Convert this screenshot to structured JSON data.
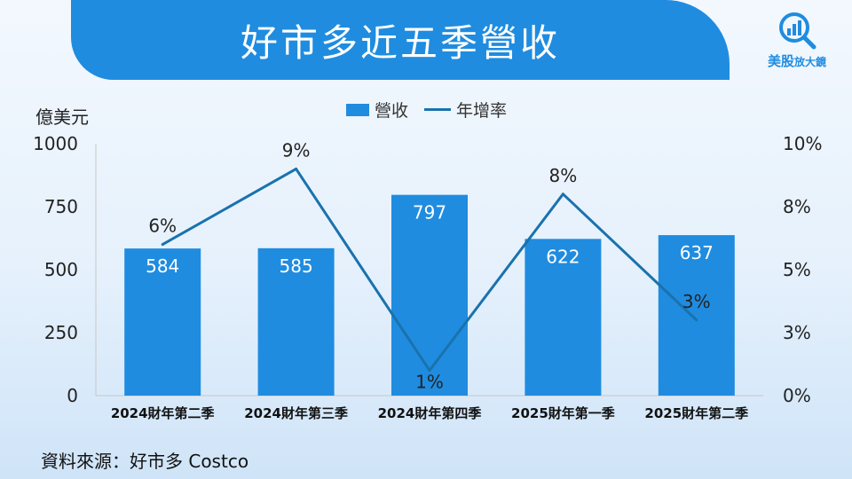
{
  "title": "好市多近五季營收",
  "logo": {
    "brand": "美股",
    "sub": "放大鏡",
    "mark": "magnifier-chart-icon",
    "color": "#1f8ce0"
  },
  "source": "資料來源：好市多 Costco",
  "chart_data": {
    "type": "bar",
    "categories": [
      "2024財年第二季",
      "2024財年第三季",
      "2024財年第四季",
      "2025財年第一季",
      "2025財年第二季"
    ],
    "series": [
      {
        "name": "營收",
        "type": "bar",
        "axis": "left",
        "values": [
          584,
          585,
          797,
          622,
          637
        ],
        "labels": [
          "584",
          "585",
          "797",
          "622",
          "637"
        ],
        "color": "#1f8ce0"
      },
      {
        "name": "年增率",
        "type": "line",
        "axis": "right",
        "values": [
          6,
          9,
          1,
          8,
          3
        ],
        "labels": [
          "6%",
          "9%",
          "1%",
          "8%",
          "3%"
        ],
        "color": "#1a72ad"
      }
    ],
    "ylabel": "億美元",
    "ylim": [
      0,
      1000
    ],
    "yticks": [
      "0",
      "250",
      "500",
      "750",
      "1000"
    ],
    "y2lim": [
      0,
      10
    ],
    "y2ticks": [
      "0%",
      "3%",
      "5%",
      "8%",
      "10%"
    ],
    "legend": "top-center",
    "grid": false
  }
}
